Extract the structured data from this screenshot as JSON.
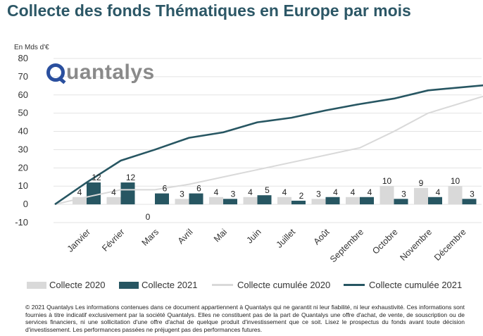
{
  "title": "Collecte des fonds Thématiques en Europe par mois",
  "unit_label": "En Mds d'€",
  "logo_text": "uantalys",
  "chart_data": {
    "type": "bar+line",
    "categories": [
      "Janvier",
      "Février",
      "Mars",
      "Avril",
      "Mai",
      "Juin",
      "Juillet",
      "Août",
      "Septembre",
      "Octobre",
      "Novembre",
      "Décembre"
    ],
    "ylim": [
      -10,
      80
    ],
    "yticks": [
      -10,
      0,
      10,
      20,
      30,
      40,
      50,
      60,
      70,
      80
    ],
    "grid": true,
    "legend_position": "bottom",
    "bar_series": [
      {
        "name": "Collecte 2020",
        "color": "#d9d9d9",
        "values": [
          4,
          4,
          0,
          3,
          4,
          4,
          4,
          3,
          4,
          10,
          9,
          10
        ],
        "labels": [
          "4",
          "4",
          "0",
          "3",
          "4",
          "4",
          "4",
          "3",
          "4",
          "10",
          "9",
          "10"
        ]
      },
      {
        "name": "Collecte 2021",
        "color": "#275662",
        "values": [
          12,
          12,
          6,
          6,
          3,
          5,
          2,
          4,
          4,
          3,
          4,
          3
        ],
        "labels": [
          "12",
          "12",
          "6",
          "6",
          "3",
          "5",
          "2",
          "4",
          "4",
          "3",
          "4",
          "3"
        ]
      }
    ],
    "line_series": [
      {
        "name": "Collecte cumulée 2020",
        "color": "#d9d9d9",
        "x": [
          "start",
          "Janvier",
          "Février",
          "Mars",
          "Avril",
          "Mai",
          "Juin",
          "Juillet",
          "Août",
          "Septembre",
          "Octobre",
          "Novembre",
          "Décembre"
        ],
        "values": [
          0,
          4,
          8,
          8,
          11,
          15,
          19,
          23,
          27,
          31,
          40,
          50,
          60
        ]
      },
      {
        "name": "Collecte cumulée 2021",
        "color": "#275662",
        "x": [
          "start",
          "Janvier",
          "Février",
          "Mars",
          "Avril",
          "Mai",
          "Juin",
          "Juillet",
          "Août",
          "Septembre",
          "Octobre",
          "Novembre",
          "Décembre"
        ],
        "values": [
          0,
          12,
          24,
          30,
          36.5,
          39.5,
          45,
          47.5,
          51.5,
          55,
          58,
          62.5,
          65.5
        ]
      }
    ]
  },
  "legend": {
    "bar2020": "Collecte 2020",
    "bar2021": "Collecte 2021",
    "line2020": "Collecte cumulée 2020",
    "line2021": "Collecte cumulée 2021"
  },
  "disclaimer": "© 2021 Quantalys Les informations contenues dans ce document appartiennent à Quantalys qui ne garantit ni leur fiabilité, ni leur exhaustivité. Ces informations sont fournies à titre indicatif exclusivement par la société Quantalys. Elles ne constituent pas de la part de Quantalys une offre d'achat, de vente, de souscription ou de services financiers, ni une sollicitation d'une offre d'achat de quelque produit d'investissement que ce soit. Lisez le prospectus du fonds avant toute décision d'investissement. Les performances passées ne préjugent pas des performances futures."
}
